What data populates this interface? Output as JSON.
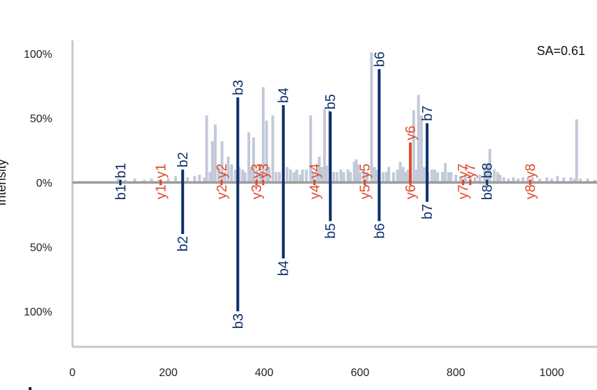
{
  "chart_data": {
    "type": "mirror-spectrum",
    "title": "",
    "xlabel": "",
    "ylabel": "Intensity",
    "annotation": "SA=0.61",
    "panel_label": "d",
    "xlim": [
      0,
      1100
    ],
    "ylim": [
      -130,
      105
    ],
    "x_ticks": [
      0,
      200,
      400,
      600,
      800,
      1000
    ],
    "y_ticks": [
      {
        "value": 100,
        "label": "100%"
      },
      {
        "value": 50,
        "label": "50%"
      },
      {
        "value": 0,
        "label": "0%"
      },
      {
        "value": -50,
        "label": "50%"
      },
      {
        "value": -100,
        "label": "100%"
      }
    ],
    "colors": {
      "background_peaks": "#c2c9d9",
      "b_ion": "#0e2f6b",
      "y_ion": "#e0492a",
      "baseline": "#9c9c9c",
      "axis": "#c8c8c8"
    },
    "background_peaks": [
      [
        95,
        3
      ],
      [
        110,
        2
      ],
      [
        130,
        3
      ],
      [
        150,
        2
      ],
      [
        165,
        3
      ],
      [
        180,
        2
      ],
      [
        200,
        3
      ],
      [
        215,
        5
      ],
      [
        240,
        4
      ],
      [
        255,
        5
      ],
      [
        265,
        6
      ],
      [
        275,
        4
      ],
      [
        280,
        52
      ],
      [
        287,
        8
      ],
      [
        292,
        32
      ],
      [
        298,
        45
      ],
      [
        305,
        12
      ],
      [
        312,
        32
      ],
      [
        318,
        8
      ],
      [
        325,
        20
      ],
      [
        332,
        14
      ],
      [
        340,
        10
      ],
      [
        348,
        12
      ],
      [
        355,
        10
      ],
      [
        360,
        8
      ],
      [
        368,
        39
      ],
      [
        372,
        12
      ],
      [
        378,
        35
      ],
      [
        385,
        10
      ],
      [
        392,
        8
      ],
      [
        398,
        74
      ],
      [
        405,
        48
      ],
      [
        410,
        12
      ],
      [
        418,
        52
      ],
      [
        425,
        8
      ],
      [
        432,
        8
      ],
      [
        440,
        10
      ],
      [
        448,
        12
      ],
      [
        455,
        10
      ],
      [
        462,
        8
      ],
      [
        468,
        10
      ],
      [
        475,
        6
      ],
      [
        480,
        10
      ],
      [
        488,
        10
      ],
      [
        497,
        52
      ],
      [
        502,
        8
      ],
      [
        510,
        10
      ],
      [
        515,
        20
      ],
      [
        520,
        12
      ],
      [
        526,
        57
      ],
      [
        530,
        13
      ],
      [
        536,
        56
      ],
      [
        545,
        8
      ],
      [
        552,
        8
      ],
      [
        560,
        10
      ],
      [
        566,
        8
      ],
      [
        575,
        10
      ],
      [
        580,
        8
      ],
      [
        588,
        16
      ],
      [
        592,
        18
      ],
      [
        596,
        14
      ],
      [
        600,
        8
      ],
      [
        608,
        10
      ],
      [
        615,
        8
      ],
      [
        624,
        101
      ],
      [
        630,
        12
      ],
      [
        635,
        10
      ],
      [
        648,
        8
      ],
      [
        655,
        8
      ],
      [
        660,
        12
      ],
      [
        670,
        8
      ],
      [
        678,
        10
      ],
      [
        684,
        16
      ],
      [
        690,
        12
      ],
      [
        695,
        8
      ],
      [
        700,
        10
      ],
      [
        712,
        56
      ],
      [
        718,
        10
      ],
      [
        722,
        68
      ],
      [
        728,
        52
      ],
      [
        734,
        12
      ],
      [
        742,
        8
      ],
      [
        750,
        10
      ],
      [
        756,
        10
      ],
      [
        762,
        8
      ],
      [
        772,
        8
      ],
      [
        778,
        15
      ],
      [
        785,
        8
      ],
      [
        790,
        8
      ],
      [
        800,
        6
      ],
      [
        810,
        5
      ],
      [
        820,
        6
      ],
      [
        830,
        5
      ],
      [
        840,
        4
      ],
      [
        850,
        6
      ],
      [
        860,
        12
      ],
      [
        866,
        15
      ],
      [
        871,
        26
      ],
      [
        880,
        10
      ],
      [
        887,
        8
      ],
      [
        892,
        6
      ],
      [
        900,
        4
      ],
      [
        910,
        3
      ],
      [
        920,
        4
      ],
      [
        930,
        3
      ],
      [
        940,
        4
      ],
      [
        950,
        3
      ],
      [
        960,
        4
      ],
      [
        975,
        3
      ],
      [
        990,
        4
      ],
      [
        1000,
        3
      ],
      [
        1012,
        5
      ],
      [
        1025,
        4
      ],
      [
        1040,
        4
      ],
      [
        1048,
        3
      ],
      [
        1052,
        49
      ],
      [
        1060,
        3
      ],
      [
        1075,
        3
      ],
      [
        1090,
        2
      ]
    ],
    "top_ions": [
      {
        "label": "b1",
        "type": "b",
        "mz": 100,
        "intensity": 0
      },
      {
        "label": "y1",
        "type": "y",
        "mz": 184,
        "intensity": 0
      },
      {
        "label": "b2",
        "type": "b",
        "mz": 230,
        "intensity": 10
      },
      {
        "label": "y2",
        "type": "y",
        "mz": 311,
        "intensity": 0
      },
      {
        "label": "b3",
        "type": "b",
        "mz": 345,
        "intensity": 66
      },
      {
        "label": "y3",
        "type": "y",
        "mz": 384,
        "intensity": 0
      },
      {
        "label": "y3",
        "type": "y",
        "mz": 398,
        "intensity": 0
      },
      {
        "label": "b4",
        "type": "b",
        "mz": 440,
        "intensity": 60
      },
      {
        "label": "y4",
        "type": "y",
        "mz": 505,
        "intensity": 0
      },
      {
        "label": "b5",
        "type": "b",
        "mz": 538,
        "intensity": 55
      },
      {
        "label": "y5",
        "type": "y",
        "mz": 610,
        "intensity": 0
      },
      {
        "label": "b6",
        "type": "b",
        "mz": 640,
        "intensity": 88
      },
      {
        "label": "y6",
        "type": "y",
        "mz": 705,
        "intensity": 31
      },
      {
        "label": "b7",
        "type": "b",
        "mz": 740,
        "intensity": 46
      },
      {
        "label": "y7",
        "type": "y",
        "mz": 815,
        "intensity": 0
      },
      {
        "label": "y7",
        "type": "y",
        "mz": 830,
        "intensity": 0
      },
      {
        "label": "b8",
        "type": "b",
        "mz": 865,
        "intensity": 0
      },
      {
        "label": "y8",
        "type": "y",
        "mz": 955,
        "intensity": 0
      }
    ],
    "bottom_ions": [
      {
        "label": "b1",
        "type": "b",
        "mz": 100,
        "intensity": 0
      },
      {
        "label": "y1",
        "type": "y",
        "mz": 184,
        "intensity": 0
      },
      {
        "label": "b2",
        "type": "b",
        "mz": 230,
        "intensity": 40
      },
      {
        "label": "y2",
        "type": "y",
        "mz": 311,
        "intensity": 0
      },
      {
        "label": "b3",
        "type": "b",
        "mz": 345,
        "intensity": 100
      },
      {
        "label": "y3",
        "type": "y",
        "mz": 384,
        "intensity": 0
      },
      {
        "label": "b4",
        "type": "b",
        "mz": 440,
        "intensity": 59
      },
      {
        "label": "y4",
        "type": "y",
        "mz": 505,
        "intensity": 0
      },
      {
        "label": "b5",
        "type": "b",
        "mz": 538,
        "intensity": 30
      },
      {
        "label": "y5",
        "type": "y",
        "mz": 610,
        "intensity": 0
      },
      {
        "label": "b6",
        "type": "b",
        "mz": 640,
        "intensity": 30
      },
      {
        "label": "y6",
        "type": "y",
        "mz": 705,
        "intensity": 0
      },
      {
        "label": "b7",
        "type": "b",
        "mz": 740,
        "intensity": 15
      },
      {
        "label": "y7",
        "type": "y",
        "mz": 815,
        "intensity": 0
      },
      {
        "label": "b8",
        "type": "b",
        "mz": 865,
        "intensity": 0
      },
      {
        "label": "y8",
        "type": "y",
        "mz": 955,
        "intensity": 0
      }
    ]
  }
}
